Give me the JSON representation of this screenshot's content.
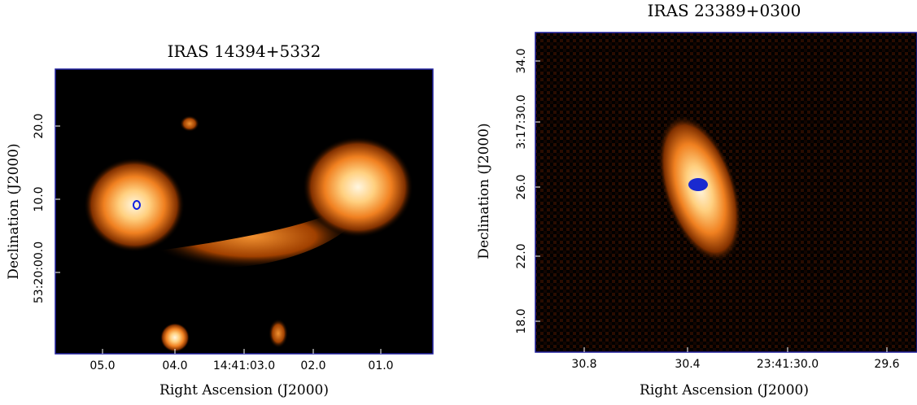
{
  "panels": [
    {
      "title": "IRAS 14394+5332",
      "x_label": "Right Ascension (J2000)",
      "y_label": "Declination (J2000)",
      "x_ticks": [
        "05.0",
        "04.0",
        "14:41:03.0",
        "02.0",
        "01.0"
      ],
      "y_ticks": [
        "20.0",
        "10.0",
        "53:20:00.0"
      ]
    },
    {
      "title": "IRAS 23389+0300",
      "x_label": "Right Ascension (J2000)",
      "y_label": "Declination (J2000)",
      "x_ticks": [
        "30.8",
        "30.4",
        "23:41:30.0",
        "29.6"
      ],
      "y_ticks": [
        "34.0",
        "3:17:30.0",
        "26.0",
        "22.0",
        "18.0"
      ]
    }
  ]
}
